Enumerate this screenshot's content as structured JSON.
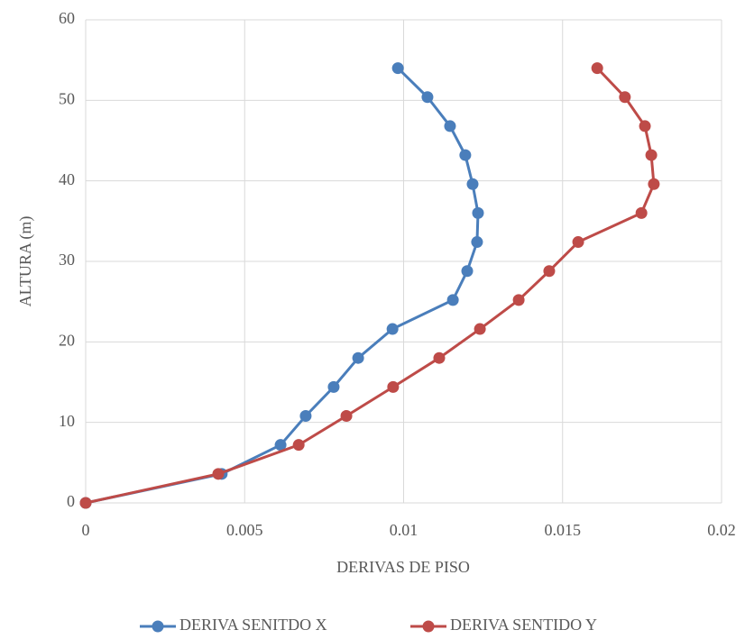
{
  "chart_data": {
    "type": "line",
    "xlabel": "DERIVAS DE PISO",
    "ylabel": "ALTURA (m)",
    "xlim": [
      0,
      0.02
    ],
    "xticks": [
      0,
      0.005,
      0.01,
      0.015,
      0.02
    ],
    "ylim": [
      0,
      60
    ],
    "yticks": [
      0,
      10,
      20,
      30,
      40,
      50,
      60
    ],
    "grid": true,
    "legend": "bottom",
    "series": [
      {
        "name": "DERIVA SENITDO X",
        "color": "#4a7ebb",
        "x": [
          0,
          0.00428,
          0.00613,
          0.00692,
          0.0078,
          0.00857,
          0.00965,
          0.01155,
          0.012,
          0.01231,
          0.01234,
          0.01217,
          0.01194,
          0.01146,
          0.01075,
          0.00982
        ],
        "values": [
          0,
          3.6,
          7.2,
          10.8,
          14.4,
          18,
          21.6,
          25.2,
          28.8,
          32.4,
          36,
          39.6,
          43.2,
          46.8,
          50.4,
          54
        ]
      },
      {
        "name": "DERIVA SENTIDO Y",
        "color": "#be4b48",
        "x": [
          0,
          0.00417,
          0.0067,
          0.0082,
          0.00967,
          0.01112,
          0.0124,
          0.01362,
          0.01458,
          0.01549,
          0.01748,
          0.01787,
          0.01779,
          0.01759,
          0.01696,
          0.01609
        ],
        "values": [
          0,
          3.6,
          7.2,
          10.8,
          14.4,
          18,
          21.6,
          25.2,
          28.8,
          32.4,
          36,
          39.6,
          43.2,
          46.8,
          50.4,
          54
        ]
      }
    ]
  }
}
